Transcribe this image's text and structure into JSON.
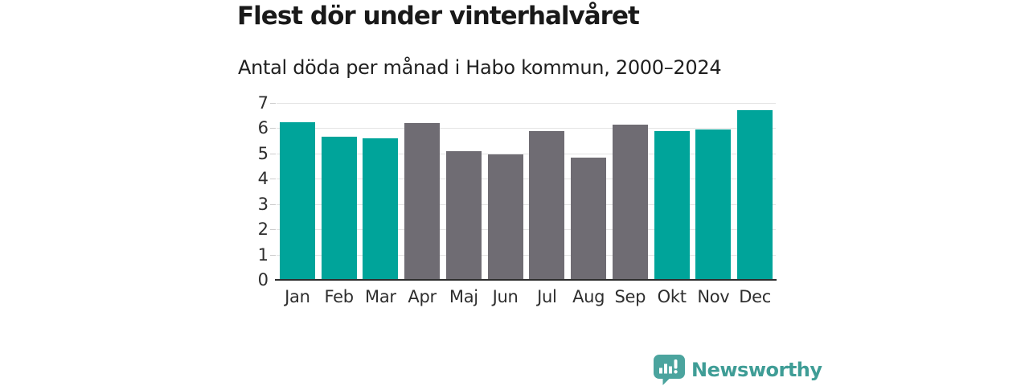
{
  "header": {
    "title": "Flest dör under vinterhalvåret",
    "subtitle": "Antal döda per månad i Habo kommun, 2000–2024"
  },
  "chart_data": {
    "type": "bar",
    "title": "Flest dör under vinterhalvåret",
    "subtitle": "Antal döda per månad i Habo kommun, 2000–2024",
    "categories": [
      "Jan",
      "Feb",
      "Mar",
      "Apr",
      "Maj",
      "Jun",
      "Jul",
      "Aug",
      "Sep",
      "Okt",
      "Nov",
      "Dec"
    ],
    "values": [
      6.25,
      5.65,
      5.6,
      6.2,
      5.1,
      4.95,
      5.9,
      4.85,
      6.15,
      5.9,
      5.95,
      6.7
    ],
    "bar_color_keys": [
      "winter",
      "winter",
      "winter",
      "summer",
      "summer",
      "summer",
      "summer",
      "summer",
      "summer",
      "winter",
      "winter",
      "winter"
    ],
    "colors": {
      "winter": "#00a49a",
      "summer": "#6f6c73"
    },
    "xlabel": "",
    "ylabel": "",
    "ylim": [
      0,
      7
    ],
    "yticks": [
      0,
      1,
      2,
      3,
      4,
      5,
      6,
      7
    ],
    "grid": true,
    "legend_position": "none",
    "axis_color": "#2d2d2d",
    "gridline_color": "#e4e4e4"
  },
  "footer": {
    "brand": "Newsworthy",
    "brand_color": "#3f9d96",
    "icon_color": "#4ba49e",
    "icon": "newsworthy-chart-bubble-icon"
  }
}
